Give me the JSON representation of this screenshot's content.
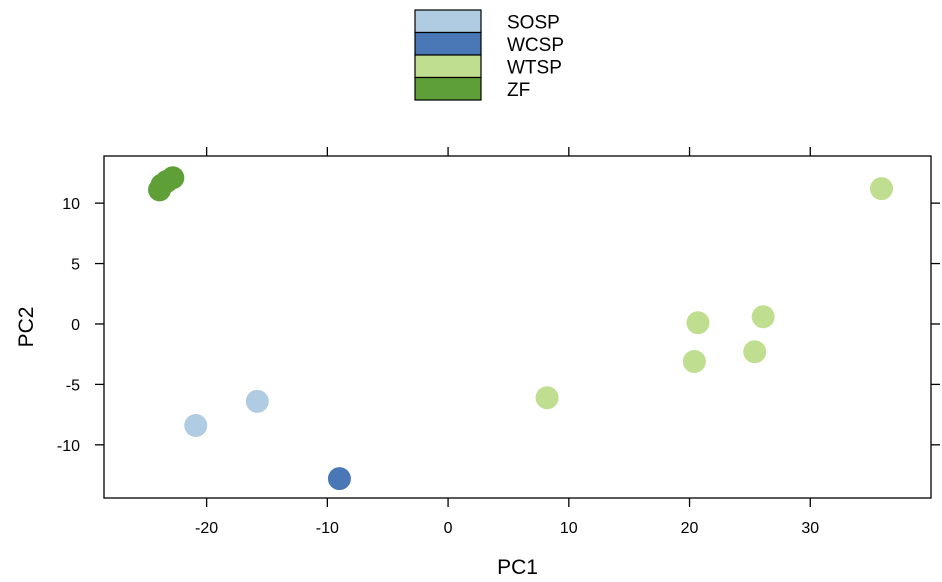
{
  "chart_data": {
    "type": "scatter",
    "xlabel": "PC1",
    "ylabel": "PC2",
    "xlim": [
      -28.5,
      40.0
    ],
    "ylim": [
      -14.4,
      13.9
    ],
    "grid": false,
    "legend_position": "top-center",
    "x_ticks": [
      -20,
      -10,
      0,
      10,
      20,
      30
    ],
    "y_ticks": [
      -10,
      -5,
      0,
      5,
      10
    ],
    "x_tick_labels": [
      "-20",
      "-10",
      "0",
      "10",
      "20",
      "30"
    ],
    "y_tick_labels": [
      "-10",
      "-5",
      "0",
      "5",
      "10"
    ],
    "series": [
      {
        "name": "SOSP",
        "color": "#afcce2",
        "points": [
          {
            "x": -20.9,
            "y": -8.4
          },
          {
            "x": -15.8,
            "y": -6.4
          }
        ]
      },
      {
        "name": "WCSP",
        "color": "#4a78b6",
        "points": [
          {
            "x": -9.0,
            "y": -12.8
          }
        ]
      },
      {
        "name": "WTSP",
        "color": "#c0de90",
        "points": [
          {
            "x": 8.2,
            "y": -6.1
          },
          {
            "x": 20.4,
            "y": -3.1
          },
          {
            "x": 20.7,
            "y": 0.1
          },
          {
            "x": 25.4,
            "y": -2.3
          },
          {
            "x": 26.1,
            "y": 0.6
          },
          {
            "x": 35.9,
            "y": 11.2
          }
        ]
      },
      {
        "name": "ZF",
        "color": "#5f9f38",
        "points": [
          {
            "x": -23.9,
            "y": 11.1
          },
          {
            "x": -23.7,
            "y": 11.5
          },
          {
            "x": -23.3,
            "y": 11.8
          },
          {
            "x": -22.8,
            "y": 12.1
          }
        ]
      }
    ]
  }
}
